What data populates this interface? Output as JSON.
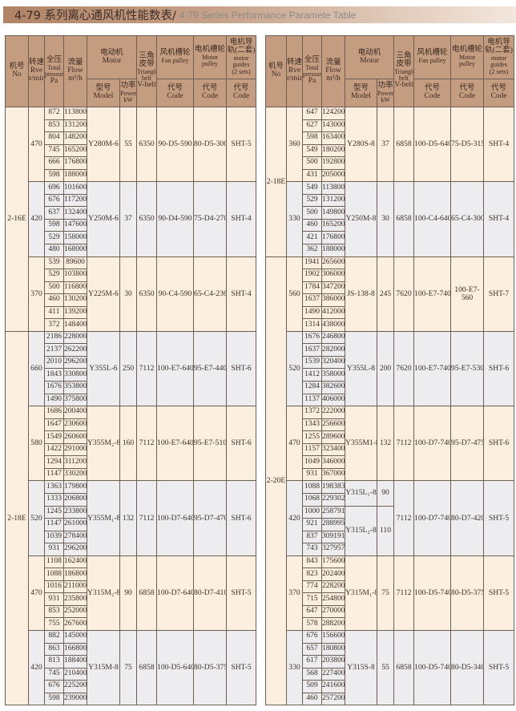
{
  "title": {
    "cn": "4-79 系列离心通风机性能数表/",
    "en": "4-79 Series Performance Paramete Table"
  },
  "header": {
    "no": {
      "cn": "机号",
      "en": "No"
    },
    "speed": {
      "cn": "转速",
      "en": "Rve",
      "unit": "r/min"
    },
    "pressure": {
      "cn": "全压",
      "en": "Total pressure",
      "unit": "Pa"
    },
    "flow": {
      "cn": "流量",
      "en": "Flow",
      "unit": "m³/h"
    },
    "motor": {
      "cn": "电动机",
      "en": "Motor"
    },
    "model": {
      "cn": "型号",
      "en": "Model"
    },
    "power": {
      "cn": "功率",
      "en": "Power",
      "unit": "kW"
    },
    "belt": {
      "cn": "三角皮带",
      "en": "Triangle belt",
      "en2": "V-belt"
    },
    "fan_pulley": {
      "cn": "风机槽轮",
      "en": "Fan pulley"
    },
    "motor_pulley": {
      "cn": "电机槽轮",
      "en": "Motor pulley"
    },
    "guides": {
      "cn": "电机导轨(二套)",
      "en": "motor guides",
      "en2": "(2 sets)"
    },
    "code": {
      "cn": "代号",
      "en": "Code"
    }
  },
  "colors": {
    "header": "#c49c80",
    "cream": "#fcefdf",
    "gray": "#ededef",
    "border": "#6e5d52"
  },
  "tables": [
    {
      "machines": [
        {
          "no": "2-16E",
          "groups": [
            {
              "rpm": "470",
              "tone": "cream",
              "motors": [
                {
                  "model": "Y280M-6",
                  "power": "55",
                  "rows": [
                    [
                      "872",
                      "113800"
                    ],
                    [
                      "853",
                      "131200"
                    ],
                    [
                      "804",
                      "148200"
                    ],
                    [
                      "745",
                      "165200"
                    ],
                    [
                      "666",
                      "176800"
                    ],
                    [
                      "598",
                      "188000"
                    ]
                  ]
                }
              ],
              "belt": "6350",
              "fan": "90-D5-590",
              "motor_pulley": "80-D5-300",
              "guides": "SHT-5"
            },
            {
              "rpm": "420",
              "tone": "gray",
              "motors": [
                {
                  "model": "Y250M-6",
                  "power": "37",
                  "rows": [
                    [
                      "696",
                      "101600"
                    ],
                    [
                      "676",
                      "117200"
                    ],
                    [
                      "637",
                      "132400"
                    ],
                    [
                      "598",
                      "147600"
                    ],
                    [
                      "529",
                      "158000"
                    ],
                    [
                      "480",
                      "168000"
                    ]
                  ]
                }
              ],
              "belt": "6350",
              "fan": "90-D4-590",
              "motor_pulley": "75-D4-270",
              "guides": "SHT-4"
            },
            {
              "rpm": "370",
              "tone": "cream",
              "motors": [
                {
                  "model": "Y225M-6",
                  "power": "30",
                  "rows": [
                    [
                      "539",
                      "89600"
                    ],
                    [
                      "529",
                      "103800"
                    ],
                    [
                      "500",
                      "116800"
                    ],
                    [
                      "460",
                      "130200"
                    ],
                    [
                      "411",
                      "139200"
                    ],
                    [
                      "372",
                      "148400"
                    ]
                  ]
                }
              ],
              "belt": "6350",
              "fan": "90-C4-590",
              "motor_pulley": "65-C4-236",
              "guides": "SHT-4"
            }
          ]
        },
        {
          "no": "2-18E",
          "groups": [
            {
              "rpm": "660",
              "tone": "gray",
              "motors": [
                {
                  "model": "Y355L-6",
                  "power": "250",
                  "rows": [
                    [
                      "2186",
                      "228000"
                    ],
                    [
                      "2137",
                      "262200"
                    ],
                    [
                      "2010",
                      "296200"
                    ],
                    [
                      "1843",
                      "330800"
                    ],
                    [
                      "1676",
                      "353800"
                    ],
                    [
                      "1490",
                      "375800"
                    ]
                  ]
                }
              ],
              "belt": "7112",
              "fan": "100-E7-640",
              "motor_pulley": "95-E7-440",
              "guides": "SHT-6"
            },
            {
              "rpm": "580",
              "tone": "cream",
              "motors": [
                {
                  "model": "Y355M₂-8",
                  "power": "160",
                  "rows": [
                    [
                      "1686",
                      "200400"
                    ],
                    [
                      "1647",
                      "230600"
                    ],
                    [
                      "1549",
                      "260600"
                    ],
                    [
                      "1422",
                      "291000"
                    ],
                    [
                      "1294",
                      "311200"
                    ],
                    [
                      "1147",
                      "330200"
                    ]
                  ]
                }
              ],
              "belt": "7112",
              "fan": "100-E7-640",
              "motor_pulley": "95-E7-510",
              "guides": "SHT-6"
            },
            {
              "rpm": "520",
              "tone": "gray",
              "motors": [
                {
                  "model": "Y355M₁-8",
                  "power": "132",
                  "rows": [
                    [
                      "1363",
                      "179800"
                    ],
                    [
                      "1333",
                      "206800"
                    ],
                    [
                      "1245",
                      "233800"
                    ],
                    [
                      "1147",
                      "261000"
                    ],
                    [
                      "1039",
                      "278400"
                    ],
                    [
                      "931",
                      "296200"
                    ]
                  ]
                }
              ],
              "belt": "7112",
              "fan": "100-D7-640",
              "motor_pulley": "95-D7-470",
              "guides": "SHT-6"
            },
            {
              "rpm": "470",
              "tone": "cream",
              "motors": [
                {
                  "model": "Y315M₂-8",
                  "power": "90",
                  "rows": [
                    [
                      "1108",
                      "162400"
                    ],
                    [
                      "1088",
                      "186800"
                    ],
                    [
                      "1016",
                      "211000"
                    ],
                    [
                      "931",
                      "235800"
                    ],
                    [
                      "853",
                      "252000"
                    ],
                    [
                      "755",
                      "267600"
                    ]
                  ]
                }
              ],
              "belt": "6858",
              "fan": "100-D7-640",
              "motor_pulley": "80-D7-410",
              "guides": "SHT-5"
            },
            {
              "rpm": "420",
              "tone": "gray",
              "motors": [
                {
                  "model": "Y315M-8",
                  "power": "75",
                  "rows": [
                    [
                      "882",
                      "145000"
                    ],
                    [
                      "863",
                      "166800"
                    ],
                    [
                      "813",
                      "188400"
                    ],
                    [
                      "745",
                      "210400"
                    ],
                    [
                      "676",
                      "225200"
                    ],
                    [
                      "598",
                      "239000"
                    ]
                  ]
                }
              ],
              "belt": "6858",
              "fan": "100-D5-640",
              "motor_pulley": "80-D5-375",
              "guides": "SHT-5"
            }
          ]
        }
      ]
    },
    {
      "machines": [
        {
          "no": "2-18E",
          "groups": [
            {
              "rpm": "360",
              "tone": "cream",
              "motors": [
                {
                  "model": "Y280S-8",
                  "power": "37",
                  "rows": [
                    [
                      "647",
                      "124200"
                    ],
                    [
                      "627",
                      "143000"
                    ],
                    [
                      "598",
                      "163400"
                    ],
                    [
                      "549",
                      "180200"
                    ],
                    [
                      "500",
                      "192800"
                    ],
                    [
                      "431",
                      "205000"
                    ]
                  ]
                }
              ],
              "belt": "6858",
              "fan": "100-D5-640",
              "motor_pulley": "75-D5-315",
              "guides": "SHT-4"
            },
            {
              "rpm": "330",
              "tone": "gray",
              "motors": [
                {
                  "model": "Y250M-8",
                  "power": "30",
                  "rows": [
                    [
                      "549",
                      "113800"
                    ],
                    [
                      "529",
                      "131200"
                    ],
                    [
                      "500",
                      "149800"
                    ],
                    [
                      "460",
                      "165200"
                    ],
                    [
                      "421",
                      "176800"
                    ],
                    [
                      "362",
                      "188000"
                    ]
                  ]
                }
              ],
              "belt": "6858",
              "fan": "100-C4-640",
              "motor_pulley": "65-C4-300",
              "guides": "SHT-4"
            }
          ]
        },
        {
          "no": "2-20E",
          "groups": [
            {
              "rpm": "560",
              "tone": "cream",
              "motors": [
                {
                  "model": "JS-138-8",
                  "power": "245",
                  "rows": [
                    [
                      "1941",
                      "265600"
                    ],
                    [
                      "1902",
                      "306000"
                    ],
                    [
                      "1784",
                      "347200"
                    ],
                    [
                      "1637",
                      "386000"
                    ],
                    [
                      "1490",
                      "412000"
                    ],
                    [
                      "1314",
                      "438000"
                    ]
                  ]
                }
              ],
              "belt": "7620",
              "fan": "100-E7-740",
              "motor_pulley": "100-E7-560",
              "guides": "SHT-7"
            },
            {
              "rpm": "520",
              "tone": "gray",
              "motors": [
                {
                  "model": "Y355L-8",
                  "power": "200",
                  "rows": [
                    [
                      "1676",
                      "246800"
                    ],
                    [
                      "1637",
                      "282000"
                    ],
                    [
                      "1539",
                      "320400"
                    ],
                    [
                      "1412",
                      "358000"
                    ],
                    [
                      "1284",
                      "382600"
                    ],
                    [
                      "1137",
                      "406000"
                    ]
                  ]
                }
              ],
              "belt": "7620",
              "fan": "100-E7-740",
              "motor_pulley": "95-E7-530",
              "guides": "SHT-6"
            },
            {
              "rpm": "470",
              "tone": "cream",
              "motors": [
                {
                  "model": "Y355M1-8",
                  "power": "132",
                  "rows": [
                    [
                      "1372",
                      "222000"
                    ],
                    [
                      "1343",
                      "256600"
                    ],
                    [
                      "1255",
                      "289600"
                    ],
                    [
                      "1157",
                      "323400"
                    ],
                    [
                      "1049",
                      "346000"
                    ],
                    [
                      "931",
                      "367000"
                    ]
                  ]
                }
              ],
              "belt": "7112",
              "fan": "100-D7-740",
              "motor_pulley": "95-D7-475",
              "guides": "SHT-6"
            },
            {
              "rpm": "420",
              "tone": "gray",
              "motors": [
                {
                  "model": "Y315L₁-8",
                  "power": "90",
                  "rows": [
                    [
                      "1088",
                      "198383"
                    ],
                    [
                      "1068",
                      "229302"
                    ]
                  ]
                },
                {
                  "model": "Y315L₂-8",
                  "power": "110",
                  "rows": [
                    [
                      "1000",
                      "258791"
                    ],
                    [
                      "921",
                      "288995"
                    ],
                    [
                      "837",
                      "309191"
                    ],
                    [
                      "743",
                      "327957"
                    ]
                  ]
                }
              ],
              "belt": "7112",
              "fan": "100-D7-740",
              "motor_pulley": "80-D7-420",
              "guides": "SHT-5"
            },
            {
              "rpm": "370",
              "tone": "cream",
              "motors": [
                {
                  "model": "Y315M₁-8",
                  "power": "75",
                  "rows": [
                    [
                      "843",
                      "175600"
                    ],
                    [
                      "823",
                      "202400"
                    ],
                    [
                      "774",
                      "228200"
                    ],
                    [
                      "715",
                      "254800"
                    ],
                    [
                      "647",
                      "270000"
                    ],
                    [
                      "578",
                      "288200"
                    ]
                  ]
                }
              ],
              "belt": "7112",
              "fan": "100-D5-740",
              "motor_pulley": "80-D5-375",
              "guides": "SHT-5"
            },
            {
              "rpm": "330",
              "tone": "gray",
              "motors": [
                {
                  "model": "Y315S-8",
                  "power": "55",
                  "rows": [
                    [
                      "676",
                      "156600"
                    ],
                    [
                      "657",
                      "180800"
                    ],
                    [
                      "617",
                      "203800"
                    ],
                    [
                      "568",
                      "227400"
                    ],
                    [
                      "509",
                      "241600"
                    ],
                    [
                      "460",
                      "257200"
                    ]
                  ]
                }
              ],
              "belt": "6858",
              "fan": "100-D5-740",
              "motor_pulley": "80-D5-340",
              "guides": "SHT-5"
            }
          ]
        }
      ]
    }
  ]
}
